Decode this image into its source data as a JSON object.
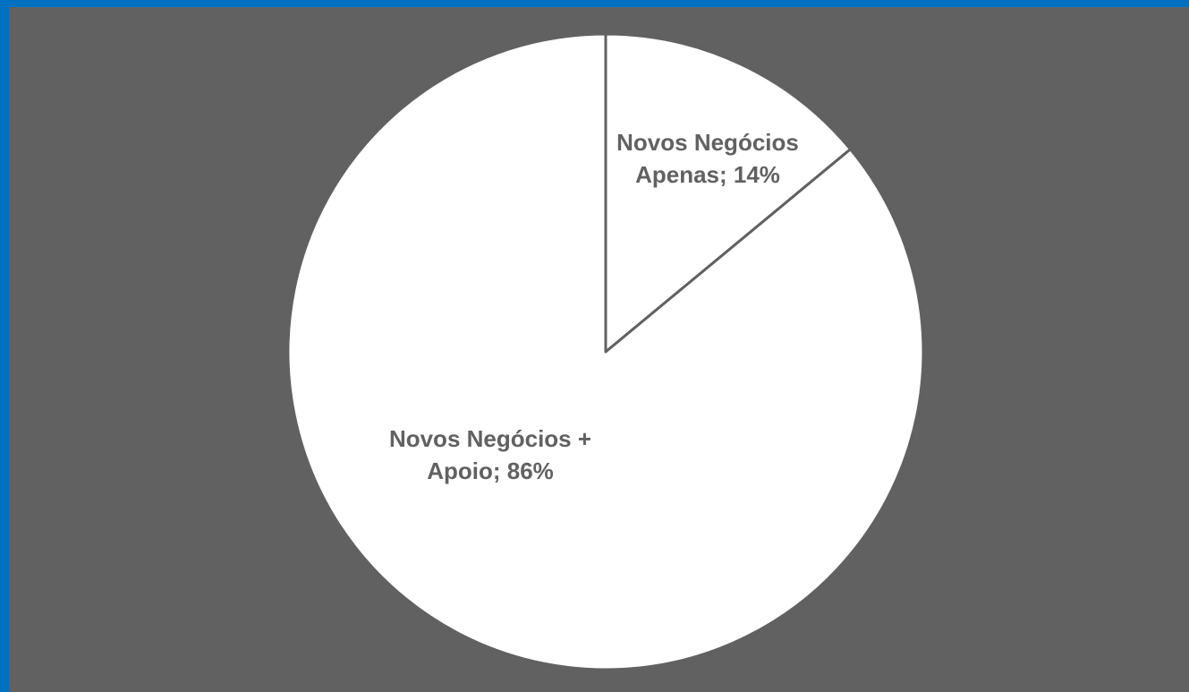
{
  "chart_data": {
    "type": "pie",
    "title": "",
    "start_angle_deg": 0,
    "direction": "clockwise",
    "slices": [
      {
        "name": "Novos Negócios Apenas",
        "value": 14,
        "label_lines": [
          "Novos Negócios",
          "Apenas; 14%"
        ]
      },
      {
        "name": "Novos Negócios + Apoio",
        "value": 86,
        "label_lines": [
          "Novos Negócios +",
          "Apoio; 86%"
        ]
      }
    ],
    "colors": {
      "background": "#616161",
      "border": "#0070c0",
      "slice_fill": "#ffffff",
      "slice_stroke": "#616161",
      "label": "#616161"
    },
    "legend": "none"
  }
}
